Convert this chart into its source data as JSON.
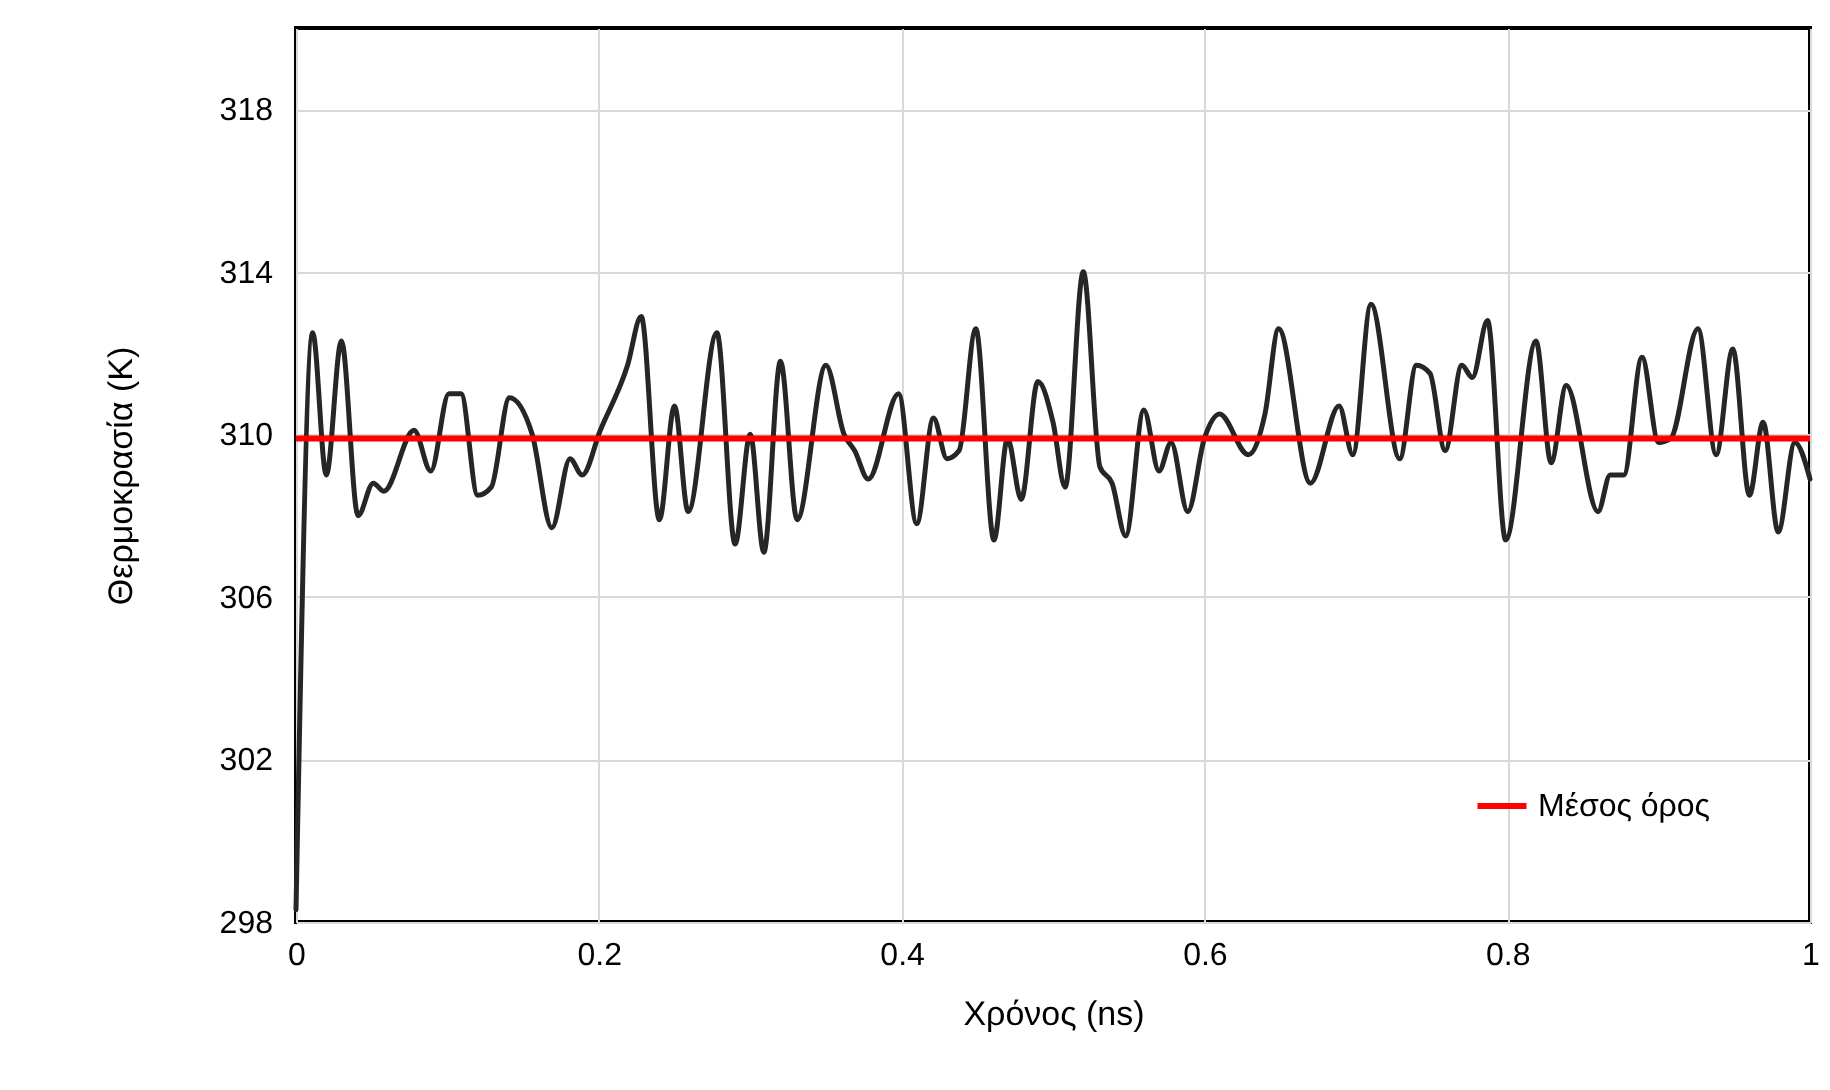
{
  "chart_data": {
    "type": "line",
    "xlabel": "Χρόνος (ns)",
    "ylabel": "Θερμοκρασία (K)",
    "x": [
      0,
      0.011,
      0.02,
      0.03,
      0.041,
      0.051,
      0.058,
      0.078,
      0.089,
      0.101,
      0.109,
      0.12,
      0.129,
      0.141,
      0.156,
      0.169,
      0.181,
      0.189,
      0.201,
      0.219,
      0.228,
      0.24,
      0.25,
      0.259,
      0.278,
      0.29,
      0.3,
      0.309,
      0.32,
      0.331,
      0.35,
      0.362,
      0.369,
      0.378,
      0.398,
      0.41,
      0.421,
      0.43,
      0.438,
      0.449,
      0.461,
      0.47,
      0.479,
      0.49,
      0.5,
      0.508,
      0.52,
      0.531,
      0.539,
      0.548,
      0.56,
      0.57,
      0.578,
      0.589,
      0.6,
      0.61,
      0.629,
      0.64,
      0.649,
      0.67,
      0.689,
      0.698,
      0.71,
      0.729,
      0.74,
      0.749,
      0.759,
      0.77,
      0.777,
      0.787,
      0.799,
      0.819,
      0.829,
      0.839,
      0.86,
      0.868,
      0.877,
      0.889,
      0.9,
      0.908,
      0.926,
      0.938,
      0.949,
      0.96,
      0.969,
      0.979,
      0.99,
      1
    ],
    "series": [
      {
        "color": "#262626",
        "values": [
          298.3,
          312.5,
          309.0,
          312.3,
          308.0,
          308.8,
          308.6,
          310.1,
          309.1,
          311.0,
          311.0,
          308.5,
          308.7,
          310.9,
          310.0,
          307.7,
          309.4,
          309.0,
          310.1,
          311.7,
          312.9,
          307.9,
          310.7,
          308.1,
          312.5,
          307.3,
          310.0,
          307.1,
          311.8,
          307.9,
          311.7,
          310.0,
          309.6,
          308.9,
          311.0,
          307.8,
          310.4,
          309.4,
          309.6,
          312.6,
          307.4,
          309.9,
          308.4,
          311.3,
          310.3,
          308.7,
          314.0,
          309.2,
          308.8,
          307.5,
          310.6,
          309.1,
          309.8,
          308.1,
          309.9,
          310.5,
          309.5,
          310.5,
          312.6,
          308.8,
          310.7,
          309.5,
          313.2,
          309.4,
          311.7,
          311.5,
          309.6,
          311.7,
          311.4,
          312.8,
          307.4,
          312.3,
          309.3,
          311.2,
          308.1,
          309.0,
          309.0,
          311.9,
          309.8,
          309.9,
          312.6,
          309.5,
          312.1,
          308.5,
          310.3,
          307.6,
          309.8,
          308.9
        ]
      }
    ],
    "xlim": [
      0,
      1
    ],
    "xticks": [
      0,
      0.2,
      0.4,
      0.6,
      0.8,
      1
    ],
    "ylim": [
      298,
      320
    ],
    "yticks": [
      298,
      302,
      306,
      310,
      314,
      318
    ],
    "grid": true,
    "legend": "bottom right",
    "ref_lines": [
      {
        "axis": "y",
        "value": 309.9,
        "label": "Μέσος όρος",
        "color": "#ff0000"
      }
    ]
  }
}
